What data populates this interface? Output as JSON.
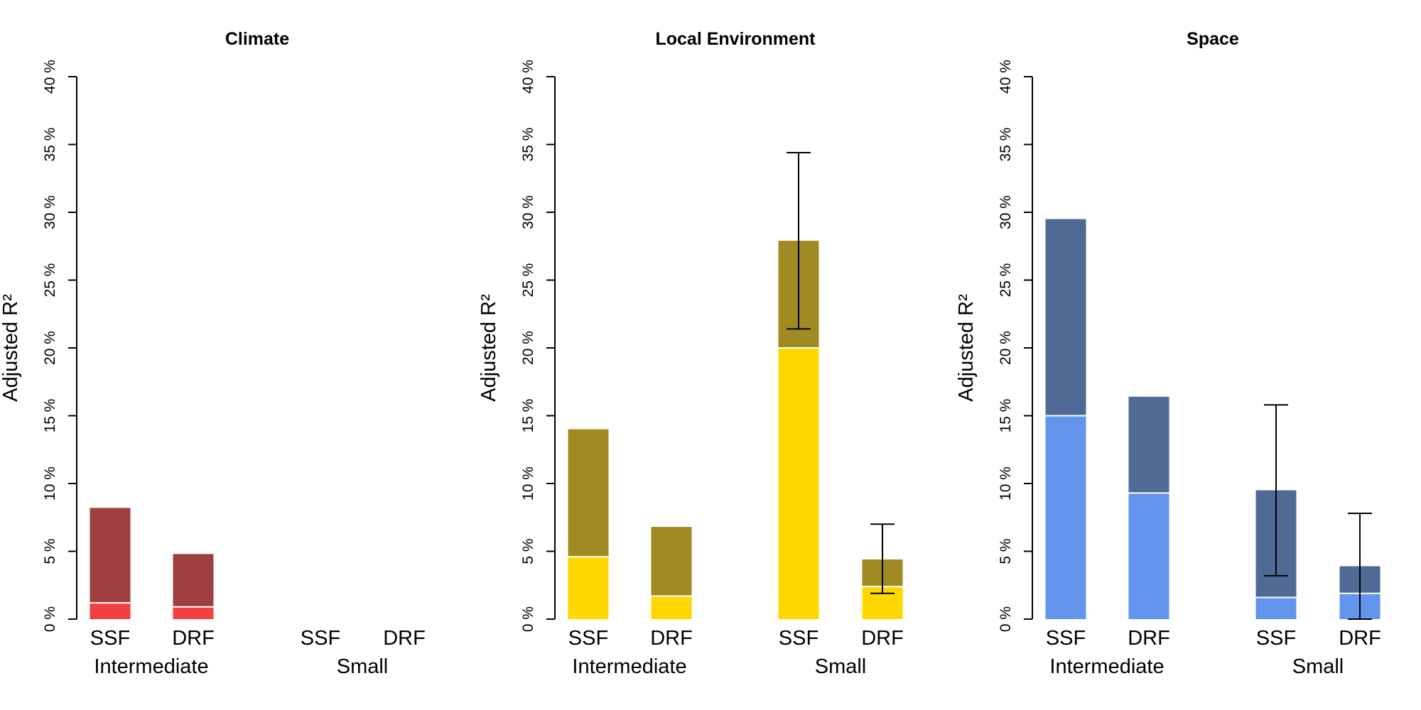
{
  "chart_data": [
    {
      "type": "bar",
      "title": "Climate",
      "ylabel": "Adjusted R²",
      "ylim": [
        0,
        40
      ],
      "yticks": [
        "0 %",
        "5 %",
        "10 %",
        "15 %",
        "20 %",
        "25 %",
        "30 %",
        "35 %",
        "40 %"
      ],
      "groups": [
        {
          "label": "Intermediate",
          "bars": [
            {
              "label": "SSF",
              "total": 8.2,
              "lower": 1.2,
              "error": null
            },
            {
              "label": "DRF",
              "total": 4.8,
              "lower": 0.9,
              "error": null
            }
          ]
        },
        {
          "label": "Small",
          "bars": [
            {
              "label": "SSF",
              "total": null,
              "lower": null,
              "error": null
            },
            {
              "label": "DRF",
              "total": null,
              "lower": null,
              "error": null
            }
          ]
        }
      ],
      "colors": {
        "upper": "#9e4040",
        "lower": "#f04040"
      }
    },
    {
      "type": "bar",
      "title": "Local Environment",
      "ylabel": "Adjusted R²",
      "ylim": [
        0,
        40
      ],
      "yticks": [
        "0 %",
        "5 %",
        "10 %",
        "15 %",
        "20 %",
        "25 %",
        "30 %",
        "35 %",
        "40 %"
      ],
      "groups": [
        {
          "label": "Intermediate",
          "bars": [
            {
              "label": "SSF",
              "total": 14.0,
              "lower": 4.6,
              "error": null
            },
            {
              "label": "DRF",
              "total": 6.8,
              "lower": 1.7,
              "error": null
            }
          ]
        },
        {
          "label": "Small",
          "bars": [
            {
              "label": "SSF",
              "total": 27.9,
              "lower": 20.0,
              "error": [
                21.4,
                34.4
              ]
            },
            {
              "label": "DRF",
              "total": 4.4,
              "lower": 2.4,
              "error": [
                1.9,
                7.0
              ]
            }
          ]
        }
      ],
      "colors": {
        "upper": "#a08a22",
        "lower": "#ffd700"
      }
    },
    {
      "type": "bar",
      "title": "Space",
      "ylabel": "Adjusted R²",
      "ylim": [
        0,
        40
      ],
      "yticks": [
        "0 %",
        "5 %",
        "10 %",
        "15 %",
        "20 %",
        "25 %",
        "30 %",
        "35 %",
        "40 %"
      ],
      "groups": [
        {
          "label": "Intermediate",
          "bars": [
            {
              "label": "SSF",
              "total": 29.5,
              "lower": 15.0,
              "error": null
            },
            {
              "label": "DRF",
              "total": 16.4,
              "lower": 9.3,
              "error": null
            }
          ]
        },
        {
          "label": "Small",
          "bars": [
            {
              "label": "SSF",
              "total": 9.5,
              "lower": 1.6,
              "error": [
                3.2,
                15.8
              ]
            },
            {
              "label": "DRF",
              "total": 3.9,
              "lower": 1.9,
              "error": [
                0.0,
                7.8
              ]
            }
          ]
        }
      ],
      "colors": {
        "upper": "#506a96",
        "lower": "#6495ec"
      }
    }
  ]
}
